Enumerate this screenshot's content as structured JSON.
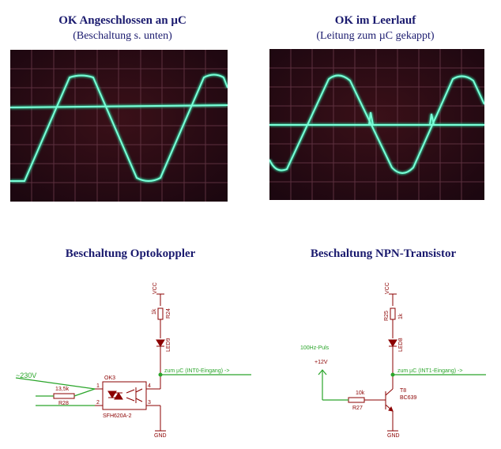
{
  "top_left": {
    "title": "OK  Angeschlossen an µC",
    "subtitle": "(Beschaltung s. unten)"
  },
  "top_right": {
    "title": "OK im Leerlauf",
    "subtitle": "(Leitung zum µC gekappt)"
  },
  "bottom_left": {
    "title": "Beschaltung Optokoppler",
    "vcc": "VCC",
    "r_top_value": "1k",
    "r_top_name": "R24",
    "led_name": "LED9",
    "output_label": "zum µC (INT0-Eingang) ->",
    "input_voltage": "~230V",
    "r_in_value": "13,5k",
    "r_in_name": "R28",
    "ok_name": "OK3",
    "ok_part": "SFH620A-2",
    "pin1": "1",
    "pin2": "2",
    "pin3": "3",
    "pin4": "4",
    "gnd": "GND"
  },
  "bottom_right": {
    "title": "Beschaltung NPN-Transistor",
    "vcc": "VCC",
    "r_top_value": "1k",
    "r_top_name": "R25",
    "led_name": "LED8",
    "output_label": "zum µC (INT1-Eingang) ->",
    "pulse_label": "100Hz-Puls",
    "supply_label": "+12V",
    "r_base_value": "10k",
    "r_base_name": "R27",
    "transistor_name": "T8",
    "transistor_part": "BC639",
    "gnd": "GND"
  }
}
